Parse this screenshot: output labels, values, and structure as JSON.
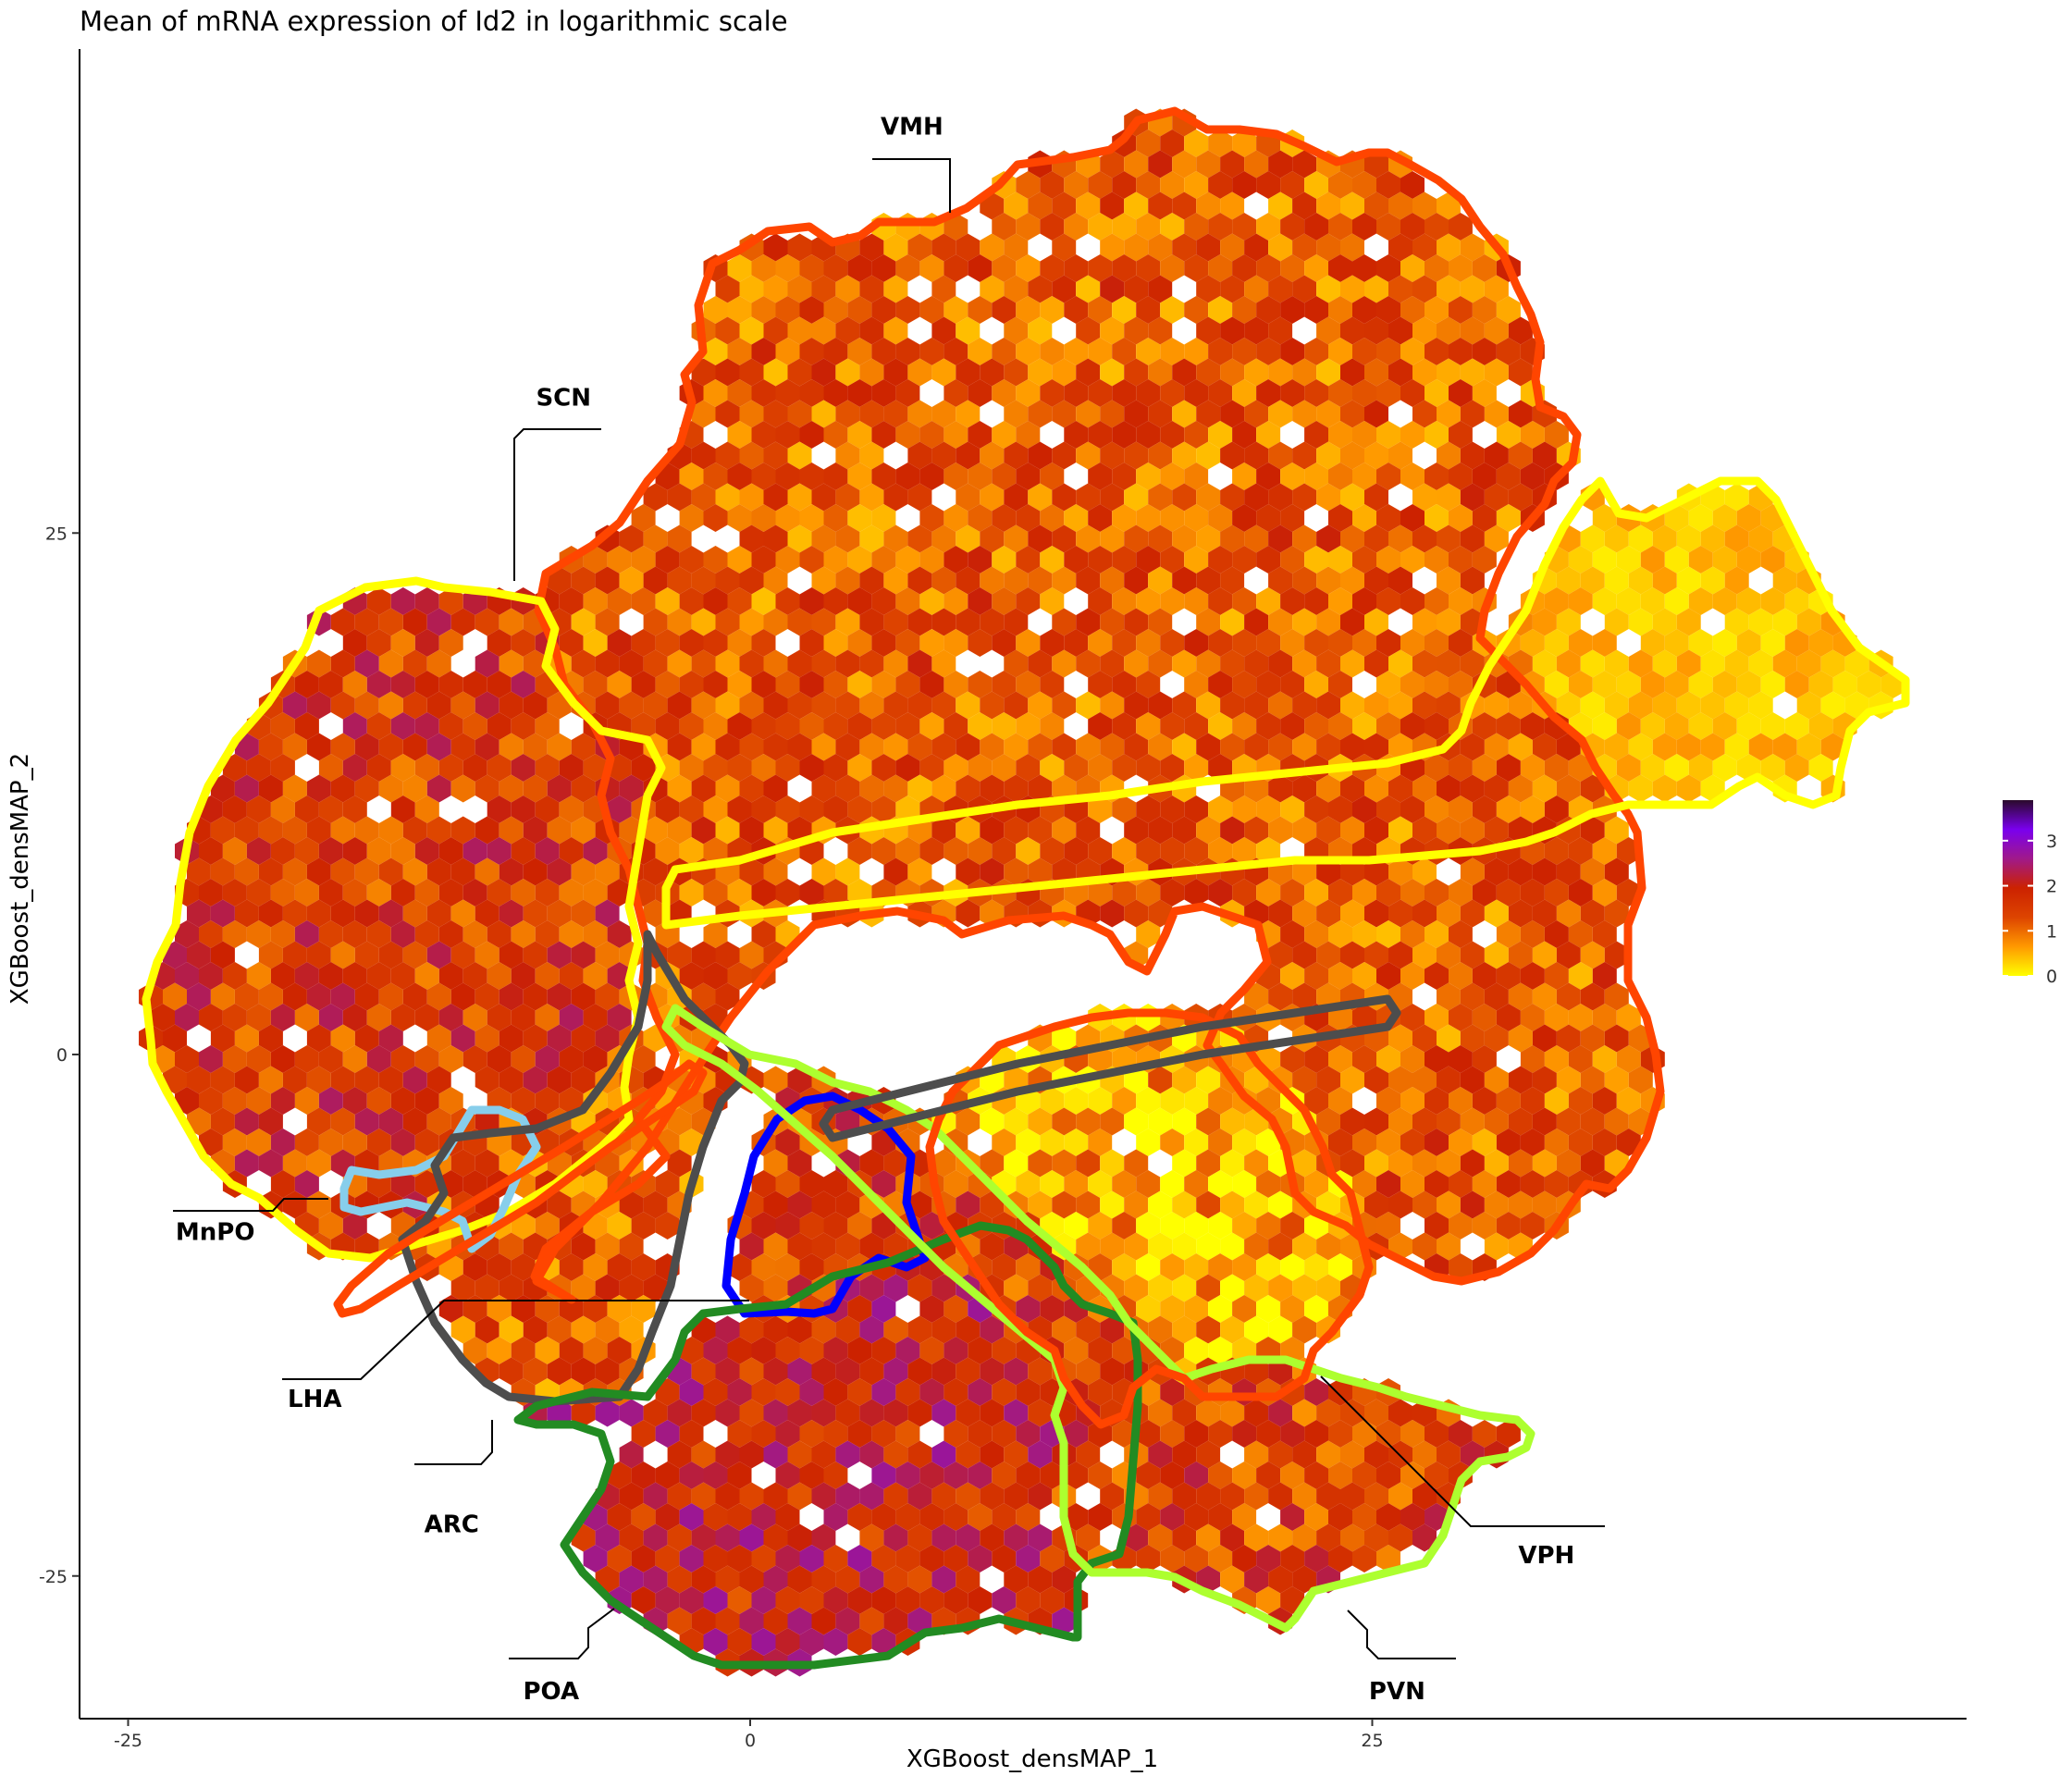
{
  "chart_data": {
    "type": "heatmap",
    "subtype": "hexbin",
    "title": "Mean of mRNA expression of Id2 in logarithmic scale",
    "xlabel": "XGBoost_densMAP_1",
    "ylabel": "XGBoost_densMAP_2",
    "x_ticks": [
      -25,
      0,
      25
    ],
    "y_ticks": [
      -25,
      0,
      25
    ],
    "xlim": [
      -27.5,
      49.5
    ],
    "ylim": [
      -32,
      48
    ],
    "grid": false,
    "legend": {
      "position": "right",
      "ticks": [
        0,
        1,
        2,
        3
      ],
      "range": [
        0,
        3.9
      ],
      "colors": [
        "#ffff00",
        "#ff9900",
        "#dd4400",
        "#cc2200",
        "#a0198a",
        "#7a00ee",
        "#2a0a2a"
      ]
    },
    "regions": [
      {
        "name": "VMH",
        "color": "#ff4500",
        "value_mean": 1.2
      },
      {
        "name": "SCN",
        "color": "#ffff00",
        "value_mean": 1.6
      },
      {
        "name": "MnPO",
        "color": "#87ceeb",
        "value_mean": 1.3
      },
      {
        "name": "LHA",
        "color": "#4d4d4d",
        "value_mean": 1.2
      },
      {
        "name": "ARC",
        "color": "#0000ff",
        "value_mean": 1.5
      },
      {
        "name": "POA",
        "color": "#228b22",
        "value_mean": 1.9
      },
      {
        "name": "PVN",
        "color": "#adff2f",
        "value_mean": 1.5
      },
      {
        "name": "VPH",
        "color": "#ff4500",
        "value_mean": 0.5
      }
    ],
    "region_labels": [
      {
        "name": "VMH",
        "x": 6.5,
        "y": 44.5
      },
      {
        "name": "SCN",
        "x": -7.5,
        "y": 31.5
      },
      {
        "name": "MnPO",
        "x": -21.5,
        "y": -8.5
      },
      {
        "name": "LHA",
        "x": -17.5,
        "y": -16.5
      },
      {
        "name": "ARC",
        "x": -12,
        "y": -22.5
      },
      {
        "name": "POA",
        "x": -8,
        "y": -30.5
      },
      {
        "name": "PVN",
        "x": 26,
        "y": -30.5
      },
      {
        "name": "VPH",
        "x": 32,
        "y": -24
      }
    ]
  }
}
